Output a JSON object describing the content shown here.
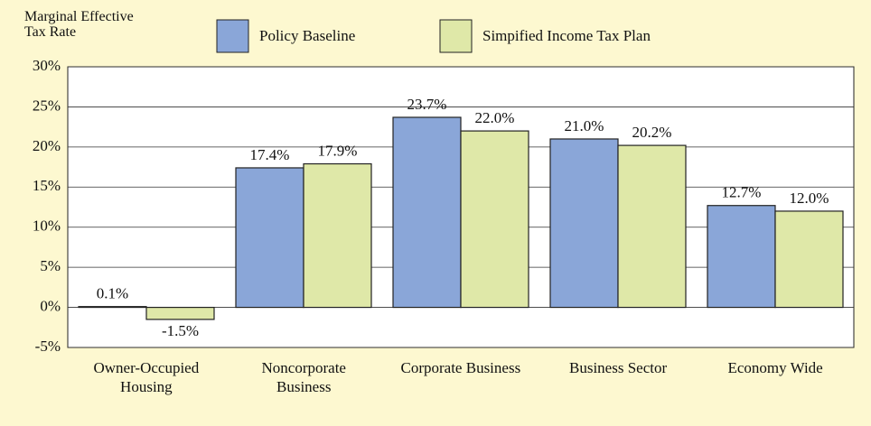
{
  "chart_data": {
    "type": "bar",
    "title": "Marginal Effective\nTax Rate",
    "categories": [
      "Owner-Occupied\nHousing",
      "Noncorporate\nBusiness",
      "Corporate Business",
      "Business Sector",
      "Economy Wide"
    ],
    "series": [
      {
        "name": "Policy Baseline",
        "color": "#8aa6d8",
        "values": [
          0.1,
          17.4,
          23.7,
          21.0,
          12.7
        ],
        "value_labels": [
          "0.1%",
          "17.4%",
          "23.7%",
          "21.0%",
          "12.7%"
        ]
      },
      {
        "name": "Simpified Income Tax Plan",
        "color": "#dfe8a8",
        "values": [
          -1.5,
          17.9,
          22.0,
          20.2,
          12.0
        ],
        "value_labels": [
          "-1.5%",
          "17.9%",
          "22.0%",
          "20.2%",
          "12.0%"
        ]
      }
    ],
    "ylim": [
      -5,
      30
    ],
    "yticks": [
      {
        "value": -5,
        "label": "-5%"
      },
      {
        "value": 0,
        "label": "0%"
      },
      {
        "value": 5,
        "label": "5%"
      },
      {
        "value": 10,
        "label": "10%"
      },
      {
        "value": 15,
        "label": "15%"
      },
      {
        "value": 20,
        "label": "20%"
      },
      {
        "value": 25,
        "label": "25%"
      },
      {
        "value": 30,
        "label": "30%"
      }
    ],
    "grid": true
  }
}
